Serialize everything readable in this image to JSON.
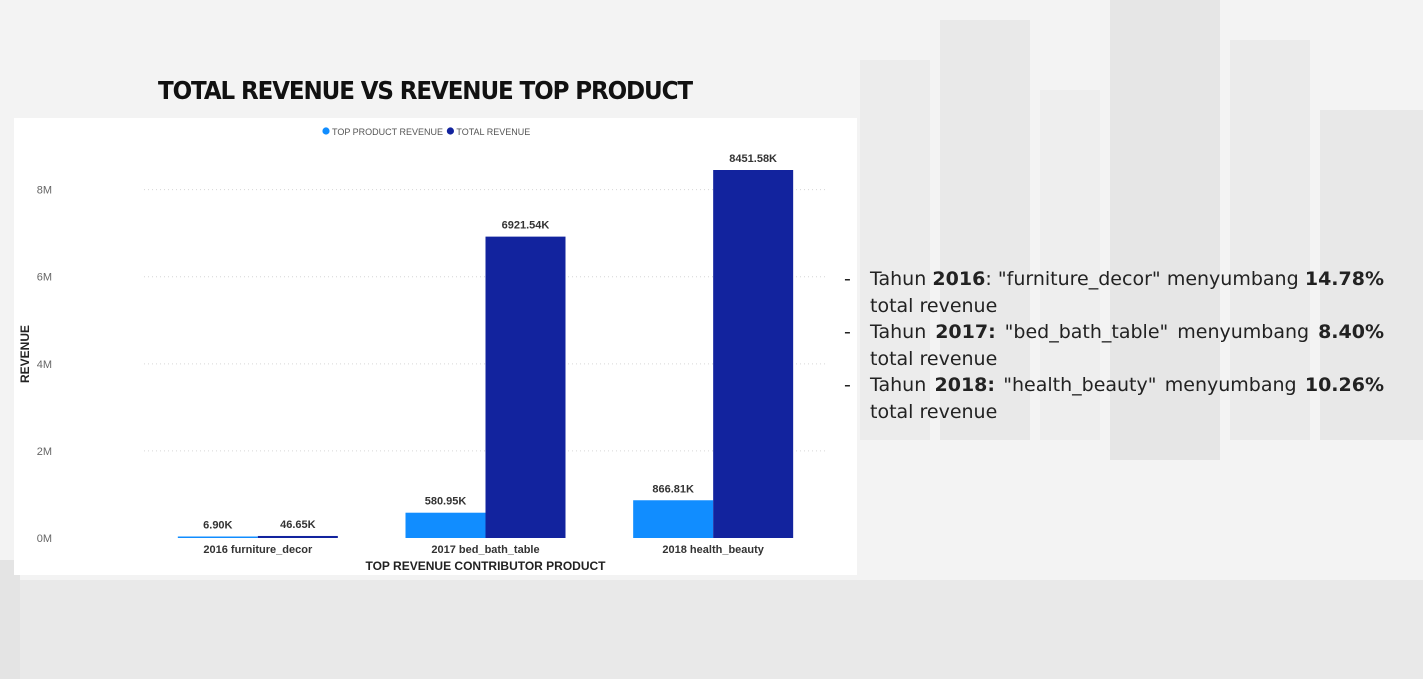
{
  "slide": {
    "title": "TOTAL REVENUE VS REVENUE TOP PRODUCT"
  },
  "chart_data": {
    "type": "bar",
    "title": "",
    "xlabel": "TOP REVENUE CONTRIBUTOR PRODUCT",
    "ylabel": "REVENUE",
    "categories": [
      "2016 furniture_decor",
      "2017 bed_bath_table",
      "2018 health_beauty"
    ],
    "series": [
      {
        "name": "TOP PRODUCT REVENUE",
        "values": [
          6.9,
          580.95,
          866.81
        ],
        "labels": [
          "6.90K",
          "580.95K",
          "866.81K"
        ],
        "color": "#118dff"
      },
      {
        "name": "TOTAL REVENUE",
        "values": [
          46.65,
          6921.54,
          8451.58
        ],
        "labels": [
          "46.65K",
          "6921.54K",
          "8451.58K"
        ],
        "color": "#12239e"
      }
    ],
    "unit": "K",
    "ylim": [
      0,
      8451.58
    ],
    "yticks": [
      0,
      2000,
      4000,
      6000,
      8000
    ],
    "ytick_labels": [
      "0M",
      "2M",
      "4M",
      "6M",
      "8M"
    ],
    "grid": true,
    "legend": "top-center"
  },
  "notes": [
    {
      "prefix": "Tahun ",
      "year": "2016",
      "middle": ": \"furniture_decor\" menyumbang ",
      "pct": "14.78%",
      "suffix": " total revenue"
    },
    {
      "prefix": "Tahun ",
      "year": "2017:",
      "middle": " \"bed_bath_table\" menyumbang ",
      "pct": "8.40%",
      "suffix": " total revenue"
    },
    {
      "prefix": "Tahun ",
      "year": "2018:",
      "middle": " \"health_beauty\" menyumbang ",
      "pct": "10.26%",
      "suffix": " total revenue"
    }
  ],
  "notes_dash": "-"
}
